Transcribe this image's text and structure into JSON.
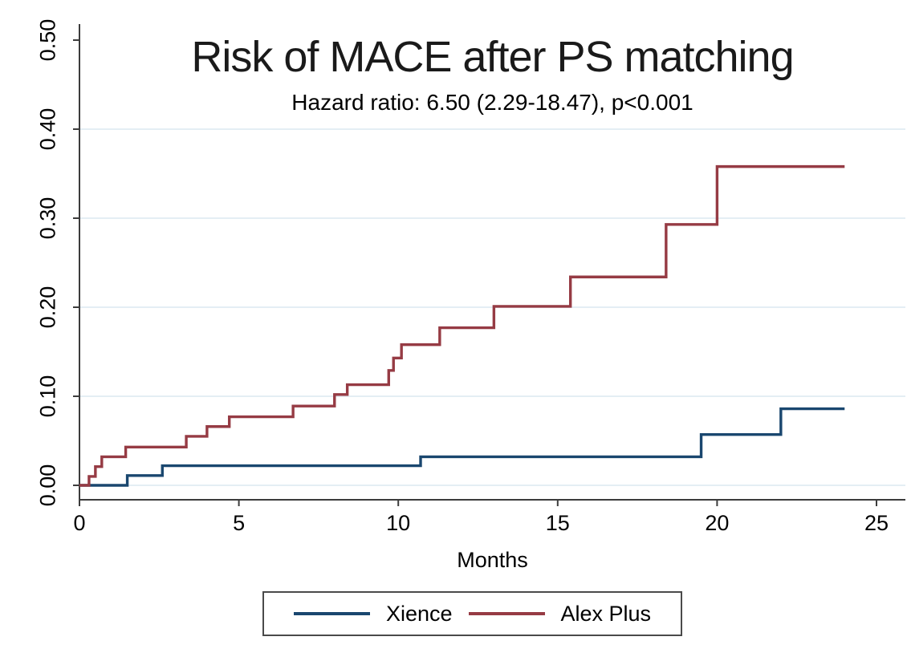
{
  "chart_data": {
    "type": "line",
    "variant": "kaplan-meier-step-cumulative-incidence",
    "title": "Risk of MACE after PS matching",
    "subtitle": "Hazard ratio: 6.50 (2.29-18.47), p<0.001",
    "xlabel": "Months",
    "ylabel": "",
    "xlim": [
      0,
      25.9
    ],
    "ylim": [
      0,
      0.518
    ],
    "x_ticks": [
      0,
      5,
      10,
      15,
      20,
      25
    ],
    "y_ticks": [
      "0.00",
      "0.10",
      "0.20",
      "0.30",
      "0.40",
      "0.50"
    ],
    "y_tick_values": [
      0,
      0.1,
      0.2,
      0.3,
      0.4,
      0.5
    ],
    "grid": "horizontal gridlines at 0.00-0.40, none at 0.50",
    "follow_up_end_months": 24,
    "series": [
      {
        "name": "Xience",
        "color": "#1a476f",
        "steps": [
          [
            0,
            0
          ],
          [
            1.5,
            0.011
          ],
          [
            2.6,
            0.022
          ],
          [
            10.7,
            0.032
          ],
          [
            19.5,
            0.057
          ],
          [
            22.0,
            0.086
          ]
        ],
        "end_month": 24
      },
      {
        "name": "Alex Plus",
        "color": "#963b44",
        "steps": [
          [
            0,
            0
          ],
          [
            0.3,
            0.01
          ],
          [
            0.5,
            0.021
          ],
          [
            0.7,
            0.032
          ],
          [
            1.45,
            0.043
          ],
          [
            3.35,
            0.055
          ],
          [
            4.0,
            0.066
          ],
          [
            4.7,
            0.077
          ],
          [
            6.7,
            0.089
          ],
          [
            8.0,
            0.102
          ],
          [
            8.4,
            0.113
          ],
          [
            9.7,
            0.129
          ],
          [
            9.85,
            0.143
          ],
          [
            10.1,
            0.158
          ],
          [
            11.3,
            0.177
          ],
          [
            13.0,
            0.201
          ],
          [
            15.4,
            0.234
          ],
          [
            18.4,
            0.293
          ],
          [
            20.0,
            0.358
          ]
        ],
        "end_month": 24
      }
    ],
    "legend": {
      "position": "bottom-center-boxed",
      "entries": [
        "Xience",
        "Alex Plus"
      ]
    }
  },
  "colors": {
    "axis": "#3c3c3c",
    "gridline": "#e4eef4",
    "text": "#000000",
    "background": "#ffffff",
    "xience_line": "#1a476f",
    "alex_plus_line": "#963b44"
  }
}
